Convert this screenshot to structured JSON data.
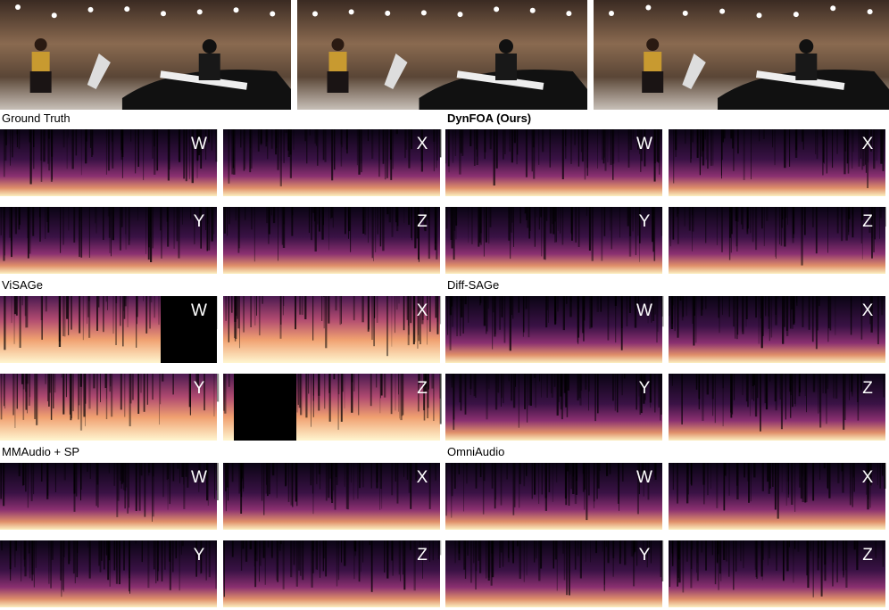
{
  "methods": [
    {
      "name": "Ground Truth",
      "channels": [
        "W",
        "X",
        "Y",
        "Z"
      ]
    },
    {
      "name": "DynFOA (Ours)",
      "channels": [
        "W",
        "X",
        "Y",
        "Z"
      ]
    },
    {
      "name": "ViSAGe",
      "channels": [
        "W",
        "X",
        "Y",
        "Z"
      ]
    },
    {
      "name": "Diff-SAGe",
      "channels": [
        "W",
        "X",
        "Y",
        "Z"
      ]
    },
    {
      "name": "MMAudio + SP",
      "channels": [
        "W",
        "X",
        "Y",
        "Z"
      ]
    },
    {
      "name": "OmniAudio",
      "channels": [
        "W",
        "X",
        "Y",
        "Z"
      ]
    }
  ]
}
